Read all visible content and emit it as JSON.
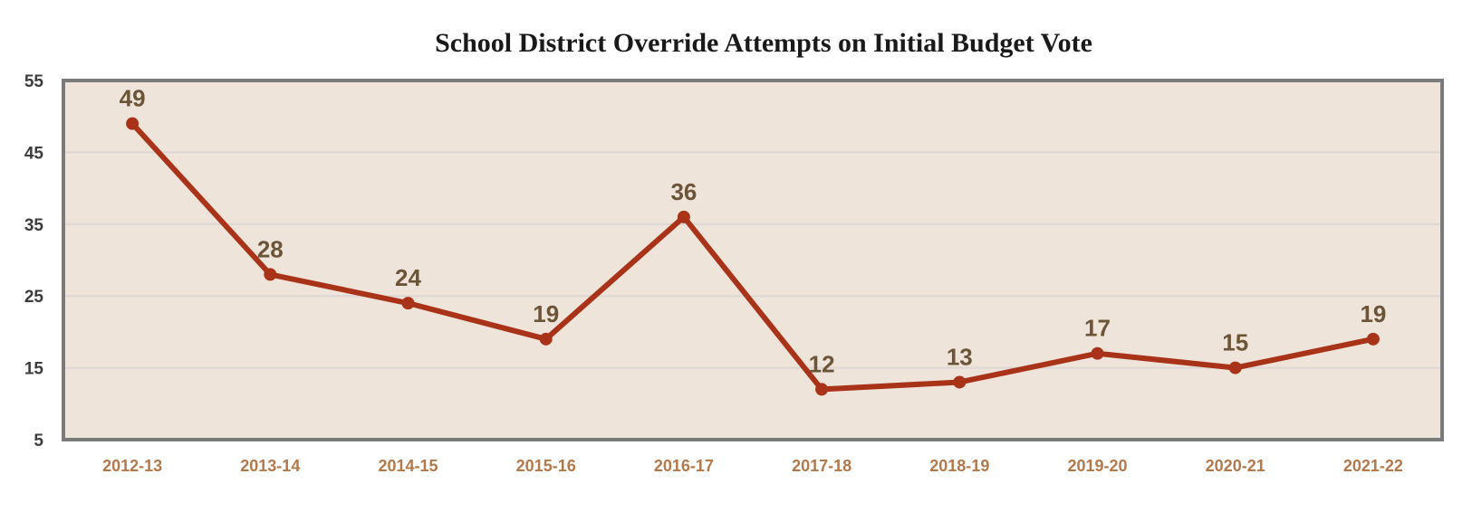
{
  "colors": {
    "plot_bg": "#efe4da",
    "plot_border": "#7b7b7b",
    "gridline": "#dcd7d4",
    "line": "#a93318",
    "data_label": "#6b5437",
    "x_tick": "#b4784a",
    "y_tick": "#3d3d3d"
  },
  "chart_data": {
    "type": "line",
    "title": "School District Override Attempts on Initial Budget Vote",
    "xlabel": "",
    "ylabel": "",
    "categories": [
      "2012-13",
      "2013-14",
      "2014-15",
      "2015-16",
      "2016-17",
      "2017-18",
      "2018-19",
      "2019-20",
      "2020-21",
      "2021-22"
    ],
    "series": [
      {
        "values": [
          49,
          28,
          24,
          19,
          36,
          12,
          13,
          17,
          15,
          19
        ]
      }
    ],
    "ylim": [
      5,
      55
    ],
    "yticks": [
      5,
      15,
      25,
      35,
      45,
      55
    ],
    "grid": true,
    "data_labels": true,
    "legend": "none"
  }
}
